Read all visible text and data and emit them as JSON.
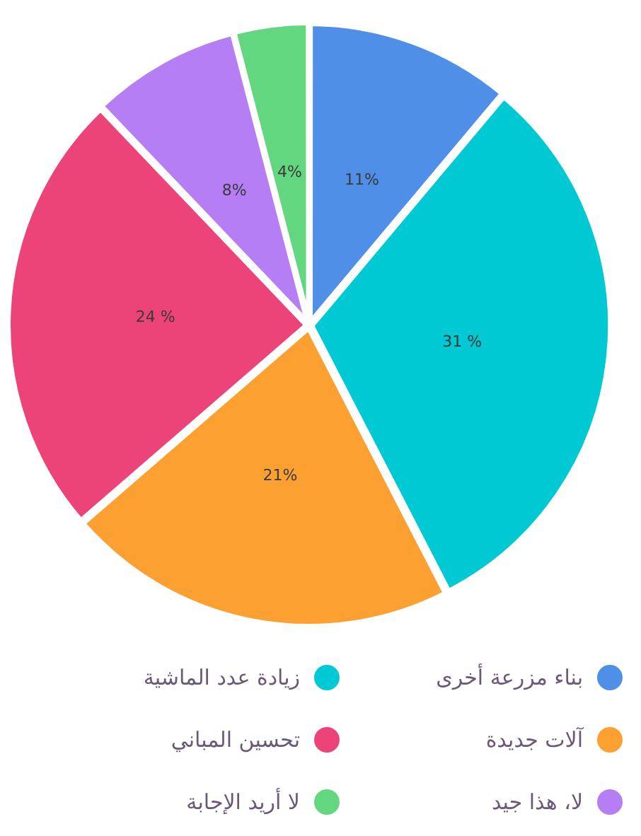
{
  "chart_data": {
    "type": "pie",
    "categories": [
      "بناء مزرعة أخرى",
      "زيادة عدد الماشية",
      "آلات جديدة",
      "تحسين المباني",
      "لا، هذا جيد",
      "لا أريد الإجابة"
    ],
    "values": [
      11,
      31,
      21,
      24,
      8,
      4
    ],
    "value_labels": [
      "11%",
      "31 %",
      "21%",
      "24 %",
      "8%",
      "4%"
    ],
    "colors": [
      "#4f8fe8",
      "#00c9d3",
      "#fda032",
      "#ec4479",
      "#b67ef5",
      "#63d77f"
    ],
    "legend": "bottom"
  }
}
